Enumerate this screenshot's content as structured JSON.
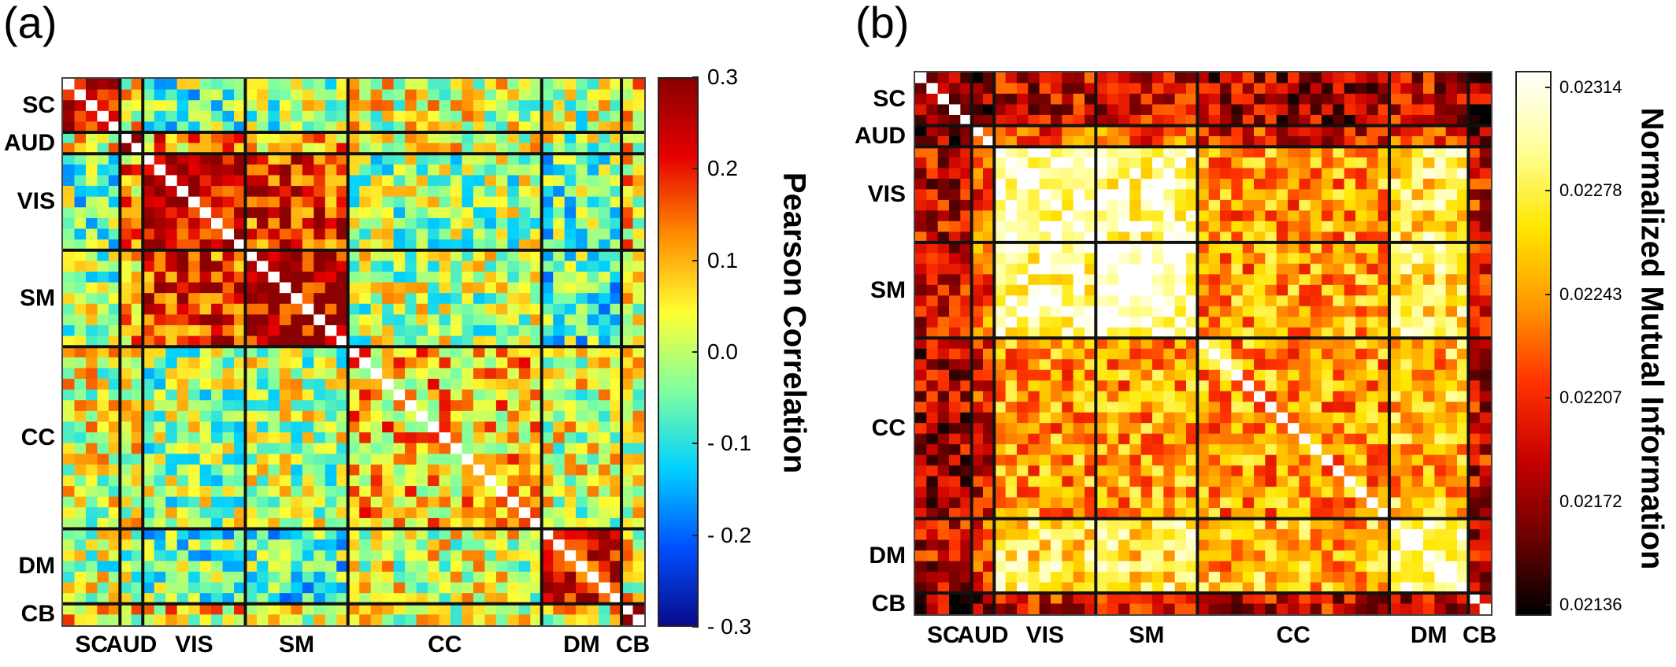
{
  "panels": [
    {
      "label": "(a)",
      "row_labels": [
        "SC",
        "AUD",
        "VIS",
        "SM",
        "CC",
        "DM",
        "CB"
      ],
      "col_labels": [
        "SC",
        "AUD",
        "VIS",
        "SM",
        "CC",
        "DM",
        "CB"
      ],
      "colorbar": {
        "title": "Pearson Correlation",
        "ticks": [
          "0.3",
          "0.2",
          "0.1",
          "0.0",
          "- 0.1",
          "- 0.2",
          "- 0.3"
        ],
        "colors": [
          "#8b0000",
          "#e60000",
          "#ff8c00",
          "#ffff33",
          "#7fffa0",
          "#00d0ff",
          "#0050ff",
          "#0a0a8b"
        ]
      }
    },
    {
      "label": "(b)",
      "row_labels": [
        "SC",
        "AUD",
        "VIS",
        "SM",
        "CC",
        "DM",
        "CB"
      ],
      "col_labels": [
        "SC",
        "AUD",
        "VIS",
        "SM",
        "CC",
        "DM",
        "CB"
      ],
      "colorbar": {
        "title": "Normalized Mutual Information",
        "ticks": [
          "0.02314",
          "0.02278",
          "0.02243",
          "0.02207",
          "0.02172",
          "0.02136"
        ],
        "colors": [
          "#ffffff",
          "#ffff99",
          "#ffe600",
          "#ff9900",
          "#ff3300",
          "#c80000",
          "#6e0000",
          "#000000"
        ]
      }
    }
  ],
  "chart_data": [
    {
      "type": "heatmap",
      "title": "",
      "xlabel": "",
      "ylabel": "",
      "colorbar_label": "Pearson Correlation",
      "value_range": [
        -0.3,
        0.3
      ],
      "networks": [
        "SC",
        "AUD",
        "VIS",
        "SM",
        "CC",
        "DM",
        "CB"
      ],
      "network_sizes": [
        5,
        2,
        9,
        9,
        17,
        7,
        2
      ],
      "block_means": [
        [
          0.25,
          0.05,
          -0.05,
          -0.02,
          0.03,
          0.0,
          0.05
        ],
        [
          0.05,
          0.25,
          0.12,
          0.1,
          0.03,
          0.0,
          0.05
        ],
        [
          -0.05,
          0.12,
          0.26,
          0.2,
          -0.02,
          -0.06,
          0.06
        ],
        [
          -0.02,
          0.1,
          0.2,
          0.27,
          0.0,
          -0.07,
          0.05
        ],
        [
          0.03,
          0.03,
          -0.02,
          0.0,
          0.08,
          0.02,
          0.04
        ],
        [
          0.0,
          0.0,
          -0.06,
          -0.07,
          0.02,
          0.24,
          0.05
        ],
        [
          0.05,
          0.05,
          0.06,
          0.05,
          0.04,
          0.05,
          0.25
        ]
      ]
    },
    {
      "type": "heatmap",
      "title": "",
      "xlabel": "",
      "ylabel": "",
      "colorbar_label": "Normalized Mutual Information",
      "value_range": [
        0.02136,
        0.02314
      ],
      "networks": [
        "SC",
        "AUD",
        "VIS",
        "SM",
        "CC",
        "DM",
        "CB"
      ],
      "network_sizes": [
        5,
        2,
        9,
        9,
        17,
        7,
        2
      ],
      "block_means": [
        [
          0.0218,
          0.0217,
          0.0219,
          0.0219,
          0.0218,
          0.0219,
          0.0217
        ],
        [
          0.0217,
          0.0221,
          0.0222,
          0.0222,
          0.022,
          0.0221,
          0.0218
        ],
        [
          0.0219,
          0.0222,
          0.023,
          0.0229,
          0.0224,
          0.0227,
          0.022
        ],
        [
          0.0219,
          0.0222,
          0.0229,
          0.023,
          0.0224,
          0.0227,
          0.022
        ],
        [
          0.0218,
          0.022,
          0.0224,
          0.0224,
          0.0224,
          0.0225,
          0.0219
        ],
        [
          0.0219,
          0.0221,
          0.0227,
          0.0227,
          0.0225,
          0.0229,
          0.0219
        ],
        [
          0.0217,
          0.0218,
          0.022,
          0.022,
          0.0219,
          0.0219,
          0.0219
        ]
      ]
    }
  ]
}
